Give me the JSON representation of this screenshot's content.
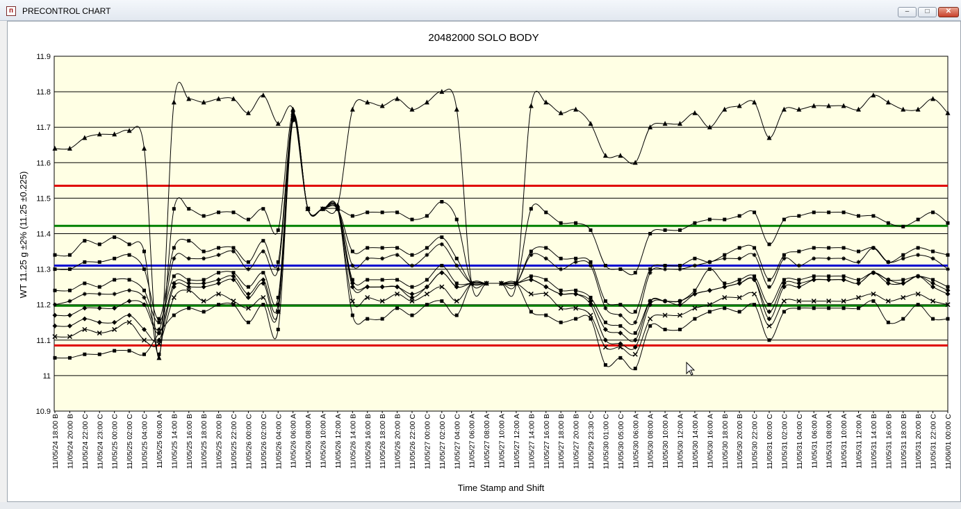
{
  "window": {
    "title": "PRECONTROL CHART",
    "icon": "precontrol-app-icon",
    "buttons": {
      "minimize": "minimize-icon",
      "maximize": "maximize-icon",
      "close": "close-icon"
    }
  },
  "chart_data": {
    "type": "line",
    "title": "20482000 SOLO BODY",
    "xlabel": "Time Stamp and Shift",
    "ylabel": "WT 11.25 g ±2% (11.25 ±0.225)",
    "ylim": [
      10.9,
      11.9
    ],
    "yticks": [
      "11.9",
      "11.8",
      "11.7",
      "11.6",
      "11.5",
      "11.4",
      "11.3",
      "11.2",
      "11.1",
      "11",
      "10.9"
    ],
    "grid": true,
    "plot_background": "#ffffe4",
    "categories": [
      "11/05/24 18:00 B",
      "11/05/24 20:00 B",
      "11/05/24 22:00 C",
      "11/05/24 23:00 C",
      "11/05/25 00:00 C",
      "11/05/25 02:00 C",
      "11/05/25 04:00 C",
      "11/05/25 06:00 A",
      "11/05/25 14:00 B",
      "11/05/25 16:00 B",
      "11/05/25 18:00 B",
      "11/05/25 20:00 B",
      "11/05/25 22:00 C",
      "11/05/26 00:00 C",
      "11/05/26 02:00 C",
      "11/05/26 04:00 C",
      "11/05/26 06:00 A",
      "11/05/26 08:00 A",
      "11/05/26 10:00 A",
      "11/05/26 12:00 A",
      "11/05/26 14:00 B",
      "11/05/26 16:00 B",
      "11/05/26 18:00 B",
      "11/05/26 20:00 B",
      "11/05/26 22:00 C",
      "11/05/27 00:00 C",
      "11/05/27 02:00 C",
      "11/05/27 04:00 C",
      "11/05/27 06:00 A",
      "11/05/27 08:00 A",
      "11/05/27 10:00 A",
      "11/05/27 12:00 A",
      "11/05/27 14:00 B",
      "11/05/27 16:00 B",
      "11/05/27 18:00 B",
      "11/05/27 20:00 B",
      "11/05/29 23:30 C",
      "11/05/30 01:00 C",
      "11/05/30 05:00 C",
      "11/05/30 06:00 A",
      "11/05/30 08:00 A",
      "11/05/30 10:00 A",
      "11/05/30 12:00 A",
      "11/05/30 14:00 A",
      "11/05/30 16:00 A",
      "11/05/30 18:00 B",
      "11/05/30 20:00 B",
      "11/05/30 22:00 C",
      "11/05/31 00:00 C",
      "11/05/31 02:00 C",
      "11/05/31 04:00 C",
      "11/05/31 06:00 A",
      "11/05/31 08:00 A",
      "11/05/31 10:00 A",
      "11/05/31 12:00 A",
      "11/05/31 14:00 B",
      "11/05/31 16:00 B",
      "11/05/31 18:00 B",
      "11/05/31 20:00 B",
      "11/05/31 22:00 C",
      "11/06/01 00:00 C"
    ],
    "control_lines": [
      {
        "value": 11.535,
        "color": "#e00000"
      },
      {
        "value": 11.422,
        "color": "#008000"
      },
      {
        "value": 11.31,
        "color": "#0000d0"
      },
      {
        "value": 11.197,
        "color": "#008000"
      },
      {
        "value": 11.085,
        "color": "#e00000"
      }
    ],
    "series": [
      {
        "marker": "triangle",
        "values": [
          11.64,
          11.64,
          11.67,
          11.68,
          11.68,
          11.69,
          11.64,
          11.05,
          11.77,
          11.78,
          11.77,
          11.78,
          11.78,
          11.74,
          11.79,
          11.71,
          11.75,
          11.47,
          11.47,
          11.48,
          11.75,
          11.77,
          11.76,
          11.78,
          11.75,
          11.77,
          11.8,
          11.75,
          11.26,
          11.26,
          11.26,
          11.26,
          11.76,
          11.77,
          11.74,
          11.75,
          11.71,
          11.62,
          11.62,
          11.6,
          11.7,
          11.71,
          11.71,
          11.74,
          11.7,
          11.75,
          11.76,
          11.77,
          11.67,
          11.75,
          11.75,
          11.76,
          11.76,
          11.76,
          11.75,
          11.79,
          11.77,
          11.75,
          11.75,
          11.78,
          11.74
        ]
      },
      {
        "marker": "square",
        "values": [
          11.34,
          11.34,
          11.38,
          11.37,
          11.39,
          11.37,
          11.35,
          11.06,
          11.47,
          11.47,
          11.45,
          11.46,
          11.46,
          11.44,
          11.47,
          11.41,
          11.74,
          11.47,
          11.47,
          11.47,
          11.45,
          11.46,
          11.46,
          11.46,
          11.44,
          11.45,
          11.49,
          11.44,
          11.26,
          11.26,
          11.26,
          11.26,
          11.47,
          11.46,
          11.43,
          11.43,
          11.41,
          11.31,
          11.3,
          11.29,
          11.4,
          11.41,
          11.41,
          11.43,
          11.44,
          11.44,
          11.45,
          11.46,
          11.37,
          11.44,
          11.45,
          11.46,
          11.46,
          11.46,
          11.45,
          11.45,
          11.43,
          11.42,
          11.44,
          11.46,
          11.43
        ]
      },
      {
        "marker": "square",
        "values": [
          11.3,
          11.3,
          11.32,
          11.32,
          11.33,
          11.34,
          11.3,
          11.16,
          11.36,
          11.38,
          11.35,
          11.36,
          11.36,
          11.32,
          11.38,
          11.32,
          11.73,
          11.47,
          11.47,
          11.47,
          11.35,
          11.36,
          11.36,
          11.36,
          11.34,
          11.36,
          11.39,
          11.33,
          11.26,
          11.26,
          11.26,
          11.26,
          11.35,
          11.36,
          11.33,
          11.33,
          11.32,
          11.21,
          11.2,
          11.18,
          11.3,
          11.31,
          11.31,
          11.33,
          11.32,
          11.34,
          11.36,
          11.36,
          11.27,
          11.34,
          11.35,
          11.36,
          11.36,
          11.36,
          11.35,
          11.36,
          11.32,
          11.34,
          11.36,
          11.35,
          11.34
        ]
      },
      {
        "marker": "star",
        "values": [
          11.2,
          11.21,
          11.23,
          11.23,
          11.23,
          11.24,
          11.22,
          11.13,
          11.33,
          11.33,
          11.33,
          11.34,
          11.35,
          11.3,
          11.35,
          11.3,
          11.72,
          11.47,
          11.47,
          11.47,
          11.31,
          11.33,
          11.33,
          11.34,
          11.31,
          11.34,
          11.37,
          11.31,
          11.26,
          11.26,
          11.26,
          11.26,
          11.34,
          11.33,
          11.3,
          11.32,
          11.31,
          11.19,
          11.17,
          11.15,
          11.29,
          11.3,
          11.3,
          11.31,
          11.32,
          11.33,
          11.33,
          11.34,
          11.25,
          11.33,
          11.31,
          11.33,
          11.33,
          11.33,
          11.32,
          11.36,
          11.32,
          11.33,
          11.34,
          11.33,
          11.3
        ]
      },
      {
        "marker": "square",
        "values": [
          11.24,
          11.24,
          11.26,
          11.25,
          11.27,
          11.27,
          11.24,
          11.15,
          11.28,
          11.27,
          11.27,
          11.29,
          11.29,
          11.25,
          11.29,
          11.22,
          11.73,
          11.47,
          11.47,
          11.47,
          11.27,
          11.27,
          11.27,
          11.27,
          11.25,
          11.27,
          11.31,
          11.26,
          11.26,
          11.26,
          11.26,
          11.26,
          11.28,
          11.27,
          11.24,
          11.24,
          11.22,
          11.15,
          11.14,
          11.12,
          11.21,
          11.21,
          11.21,
          11.24,
          11.3,
          11.26,
          11.27,
          11.28,
          11.2,
          11.27,
          11.27,
          11.28,
          11.28,
          11.28,
          11.27,
          11.29,
          11.27,
          11.27,
          11.28,
          11.27,
          11.25
        ]
      },
      {
        "marker": "diamond",
        "values": [
          11.17,
          11.17,
          11.19,
          11.19,
          11.19,
          11.21,
          11.2,
          11.12,
          11.26,
          11.26,
          11.26,
          11.27,
          11.28,
          11.23,
          11.27,
          11.2,
          11.73,
          11.47,
          11.47,
          11.47,
          11.26,
          11.25,
          11.25,
          11.25,
          11.23,
          11.25,
          11.29,
          11.25,
          11.26,
          11.26,
          11.26,
          11.26,
          11.27,
          11.25,
          11.23,
          11.23,
          11.21,
          11.13,
          11.12,
          11.1,
          11.21,
          11.21,
          11.21,
          11.23,
          11.24,
          11.25,
          11.26,
          11.27,
          11.18,
          11.26,
          11.26,
          11.27,
          11.27,
          11.27,
          11.26,
          11.29,
          11.27,
          11.26,
          11.28,
          11.26,
          11.24
        ]
      },
      {
        "marker": "diamond",
        "values": [
          11.14,
          11.14,
          11.16,
          11.15,
          11.15,
          11.17,
          11.13,
          11.1,
          11.25,
          11.25,
          11.25,
          11.26,
          11.27,
          11.22,
          11.26,
          11.18,
          11.72,
          11.47,
          11.47,
          11.47,
          11.25,
          11.25,
          11.25,
          11.25,
          11.22,
          11.25,
          11.29,
          11.25,
          11.26,
          11.26,
          11.26,
          11.26,
          11.27,
          11.25,
          11.23,
          11.23,
          11.2,
          11.1,
          11.09,
          11.08,
          11.2,
          11.21,
          11.2,
          11.23,
          11.24,
          11.25,
          11.26,
          11.27,
          11.16,
          11.25,
          11.25,
          11.27,
          11.27,
          11.27,
          11.26,
          11.29,
          11.26,
          11.26,
          11.28,
          11.25,
          11.23
        ]
      },
      {
        "marker": "x",
        "values": [
          11.11,
          11.11,
          11.13,
          11.12,
          11.13,
          11.15,
          11.1,
          11.09,
          11.22,
          11.24,
          11.21,
          11.23,
          11.21,
          11.19,
          11.22,
          11.18,
          11.73,
          11.47,
          11.47,
          11.47,
          11.21,
          11.22,
          11.21,
          11.23,
          11.21,
          11.23,
          11.25,
          11.21,
          11.26,
          11.26,
          11.26,
          11.26,
          11.23,
          11.23,
          11.19,
          11.19,
          11.17,
          11.08,
          11.08,
          11.06,
          11.16,
          11.17,
          11.17,
          11.19,
          11.2,
          11.22,
          11.22,
          11.23,
          11.14,
          11.21,
          11.21,
          11.21,
          11.21,
          11.21,
          11.22,
          11.23,
          11.21,
          11.22,
          11.23,
          11.21,
          11.2
        ]
      },
      {
        "marker": "square",
        "values": [
          11.05,
          11.05,
          11.06,
          11.06,
          11.07,
          11.07,
          11.06,
          11.12,
          11.17,
          11.19,
          11.18,
          11.2,
          11.2,
          11.15,
          11.2,
          11.13,
          11.72,
          11.47,
          11.47,
          11.47,
          11.17,
          11.16,
          11.16,
          11.19,
          11.17,
          11.2,
          11.21,
          11.17,
          11.26,
          11.26,
          11.26,
          11.26,
          11.18,
          11.17,
          11.15,
          11.16,
          11.16,
          11.03,
          11.05,
          11.02,
          11.14,
          11.13,
          11.13,
          11.16,
          11.18,
          11.19,
          11.18,
          11.2,
          11.1,
          11.18,
          11.19,
          11.19,
          11.19,
          11.19,
          11.19,
          11.21,
          11.15,
          11.16,
          11.2,
          11.16,
          11.16
        ]
      }
    ]
  }
}
